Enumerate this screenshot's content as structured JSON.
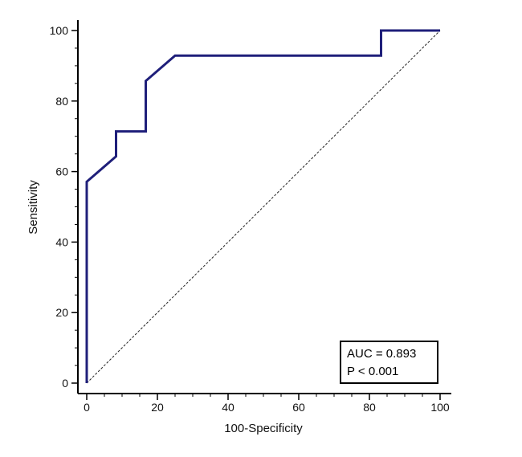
{
  "chart_data": {
    "type": "line",
    "title": "",
    "xlabel": "100-Specificity",
    "ylabel": "Sensitivity",
    "xlim": [
      0,
      100
    ],
    "ylim": [
      0,
      100
    ],
    "xticks": [
      "0",
      "20",
      "40",
      "60",
      "80",
      "100"
    ],
    "yticks": [
      "0",
      "20",
      "40",
      "60",
      "80",
      "100"
    ],
    "grid": false,
    "series": [
      {
        "x": [
          0,
          0,
          8.3,
          8.3,
          16.7,
          16.7,
          25,
          83.3,
          83.3,
          100
        ],
        "y": [
          0,
          57.1,
          64.3,
          71.4,
          71.4,
          85.7,
          92.9,
          92.9,
          100,
          100
        ]
      },
      {
        "x": [
          0,
          100
        ],
        "y": [
          0,
          100
        ]
      }
    ],
    "annotations": {
      "auc": "AUC = 0.893",
      "p": "P < 0.001"
    },
    "colors": {
      "roc": "#1f1f7a",
      "reference": "#222222",
      "axis": "#000000"
    }
  }
}
